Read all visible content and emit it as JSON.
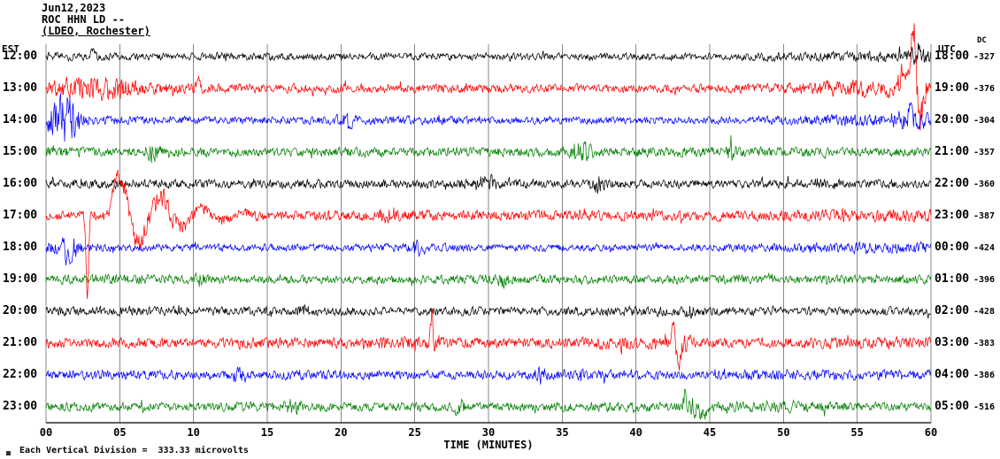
{
  "header": {
    "date": "Jun12,2023",
    "station": "ROC HHN LD --",
    "network": "(LDEO, Rochester)"
  },
  "axes": {
    "left_label": "EST",
    "right_label": "UTC",
    "dc_label": "DC",
    "x_label": "TIME (MINUTES)",
    "x_ticks": [
      "00",
      "05",
      "10",
      "15",
      "20",
      "25",
      "30",
      "35",
      "40",
      "45",
      "50",
      "55",
      "60"
    ]
  },
  "footer": {
    "scale_note": "Each Vertical Division =  333.33 microvolts"
  },
  "chart_data": {
    "type": "line",
    "title": "ROC HHN LD -- (LDEO, Rochester) helicorder seismogram, Jun12,2023",
    "xlabel": "TIME (MINUTES)",
    "x_range_minutes": [
      0,
      60
    ],
    "x_tick_step_minutes": 5,
    "vertical_division_microvolts": 333.33,
    "grid": true,
    "trace_color_cycle": [
      "#000000",
      "#ff0000",
      "#0000ff",
      "#008000"
    ],
    "rows": [
      {
        "est": "12:00",
        "utc": "18:00",
        "dc": "-327",
        "color": "#000000",
        "seed": 11,
        "envelope": [
          6,
          5,
          5,
          5,
          5,
          5,
          5,
          5,
          5,
          5,
          6,
          8
        ],
        "bursts": [
          {
            "m0": 58.3,
            "m1": 60,
            "a": 7
          },
          {
            "m0": 11.5,
            "m1": 12.5,
            "a": 5
          }
        ],
        "spikes": [
          {
            "m": 59.2,
            "a": 13
          },
          {
            "m": 3.2,
            "a": 9
          }
        ]
      },
      {
        "est": "13:00",
        "utc": "19:00",
        "dc": "-376",
        "color": "#ff0000",
        "seed": 22,
        "envelope": [
          12,
          9,
          7,
          6,
          6,
          6,
          6,
          6,
          6,
          6,
          7,
          13
        ],
        "bursts": [
          {
            "m0": 0.5,
            "m1": 6.5,
            "a": 9
          },
          {
            "m0": 57.5,
            "m1": 60,
            "a": 14
          }
        ],
        "spikes": [
          {
            "m": 58.85,
            "a": 72,
            "w": 0.25
          },
          {
            "m": 59.15,
            "a": -48,
            "w": 0.3
          },
          {
            "m": 58.4,
            "a": 25,
            "w": 0.5
          },
          {
            "m": 10.3,
            "a": 10
          }
        ]
      },
      {
        "est": "14:00",
        "utc": "20:00",
        "dc": "-304",
        "color": "#0000ff",
        "seed": 33,
        "envelope": [
          9,
          6,
          5,
          5,
          6,
          6,
          5,
          5,
          5,
          5,
          6,
          9
        ],
        "bursts": [
          {
            "m0": 0,
            "m1": 2.6,
            "a": 26
          },
          {
            "m0": 19.5,
            "m1": 21.2,
            "a": 6
          },
          {
            "m0": 57,
            "m1": 60,
            "a": 7
          }
        ],
        "spikes": [
          {
            "m": 0.9,
            "a": 20
          },
          {
            "m": 20.65,
            "a": -17
          },
          {
            "m": 58.6,
            "a": 13
          }
        ]
      },
      {
        "est": "15:00",
        "utc": "21:00",
        "dc": "-357",
        "color": "#008000",
        "seed": 44,
        "envelope": [
          8,
          6,
          6,
          6,
          7,
          6,
          7,
          6,
          7,
          7,
          7,
          6
        ],
        "bursts": [
          {
            "m0": 35.3,
            "m1": 37.2,
            "a": 12
          },
          {
            "m0": 6.5,
            "m1": 8,
            "a": 8
          },
          {
            "m0": 46,
            "m1": 47,
            "a": 7
          }
        ],
        "spikes": []
      },
      {
        "est": "16:00",
        "utc": "22:00",
        "dc": "-360",
        "color": "#000000",
        "seed": 55,
        "envelope": [
          6,
          7,
          6,
          6,
          6,
          6,
          7,
          6,
          6,
          6,
          6,
          6
        ],
        "bursts": [
          {
            "m0": 36.8,
            "m1": 38,
            "a": 10
          },
          {
            "m0": 29.4,
            "m1": 30.6,
            "a": 8
          },
          {
            "m0": 52,
            "m1": 53,
            "a": 7
          }
        ],
        "spikes": []
      },
      {
        "est": "17:00",
        "utc": "23:00",
        "dc": "-387",
        "color": "#ff0000",
        "seed": 66,
        "envelope": [
          6,
          9,
          9,
          7,
          7,
          8,
          7,
          7,
          7,
          7,
          8,
          9
        ],
        "bursts": [
          {
            "m0": 4.2,
            "m1": 9.5,
            "a": 9
          },
          {
            "m0": 22.5,
            "m1": 24,
            "a": 8
          }
        ],
        "spikes": [
          {
            "m": 2.8,
            "a": -92,
            "w": 0.12
          }
        ],
        "event": {
          "m0": 4.25,
          "amp": 58,
          "decay": 3.2,
          "freq": 2.2
        }
      },
      {
        "est": "18:00",
        "utc": "00:00",
        "dc": "-424",
        "color": "#0000ff",
        "seed": 77,
        "envelope": [
          9,
          5,
          5,
          5,
          5,
          6,
          5,
          5,
          5,
          5,
          6,
          8
        ],
        "bursts": [
          {
            "m0": 0.8,
            "m1": 2.4,
            "a": 12
          },
          {
            "m0": 24.5,
            "m1": 26,
            "a": 7
          }
        ],
        "spikes": [
          {
            "m": 1.5,
            "a": -14
          }
        ]
      },
      {
        "est": "19:00",
        "utc": "01:00",
        "dc": "-396",
        "color": "#008000",
        "seed": 88,
        "envelope": [
          6,
          7,
          6,
          6,
          6,
          6,
          7,
          6,
          6,
          6,
          6,
          6
        ],
        "bursts": [
          {
            "m0": 10,
            "m1": 11,
            "a": 6
          },
          {
            "m0": 30.5,
            "m1": 31.5,
            "a": 7
          }
        ],
        "spikes": []
      },
      {
        "est": "20:00",
        "utc": "02:00",
        "dc": "-428",
        "color": "#000000",
        "seed": 99,
        "envelope": [
          6,
          7,
          6,
          6,
          6,
          6,
          6,
          6,
          7,
          6,
          6,
          6
        ],
        "bursts": [
          {
            "m0": 17,
            "m1": 18,
            "a": 6
          },
          {
            "m0": 43,
            "m1": 44,
            "a": 6
          }
        ],
        "spikes": []
      },
      {
        "est": "21:00",
        "utc": "03:00",
        "dc": "-383",
        "color": "#ff0000",
        "seed": 101,
        "envelope": [
          7,
          7,
          7,
          8,
          7,
          9,
          7,
          7,
          9,
          7,
          7,
          8
        ],
        "bursts": [
          {
            "m0": 42,
            "m1": 44,
            "a": 7
          },
          {
            "m0": 25.5,
            "m1": 27,
            "a": 7
          }
        ],
        "spikes": [
          {
            "m": 26.15,
            "a": 28,
            "w": 0.12
          },
          {
            "m": 42.55,
            "a": 26,
            "w": 0.2
          },
          {
            "m": 42.85,
            "a": -24,
            "w": 0.25
          }
        ]
      },
      {
        "est": "22:00",
        "utc": "04:00",
        "dc": "-386",
        "color": "#0000ff",
        "seed": 111,
        "envelope": [
          6,
          7,
          6,
          6,
          7,
          6,
          6,
          8,
          6,
          6,
          9,
          7
        ],
        "bursts": [
          {
            "m0": 12.5,
            "m1": 13.5,
            "a": 7
          },
          {
            "m0": 33,
            "m1": 34,
            "a": 7
          }
        ],
        "spikes": []
      },
      {
        "est": "23:00",
        "utc": "05:00",
        "dc": "-516",
        "color": "#008000",
        "seed": 121,
        "envelope": [
          7,
          6,
          6,
          7,
          6,
          6,
          6,
          6,
          7,
          6,
          9,
          6
        ],
        "bursts": [
          {
            "m0": 42.5,
            "m1": 45,
            "a": 9
          },
          {
            "m0": 16,
            "m1": 17.5,
            "a": 7
          },
          {
            "m0": 27.5,
            "m1": 28.5,
            "a": 7
          }
        ],
        "spikes": [
          {
            "m": 43.3,
            "a": 12
          },
          {
            "m": 44.6,
            "a": -9,
            "w": 0.4
          }
        ]
      }
    ]
  }
}
